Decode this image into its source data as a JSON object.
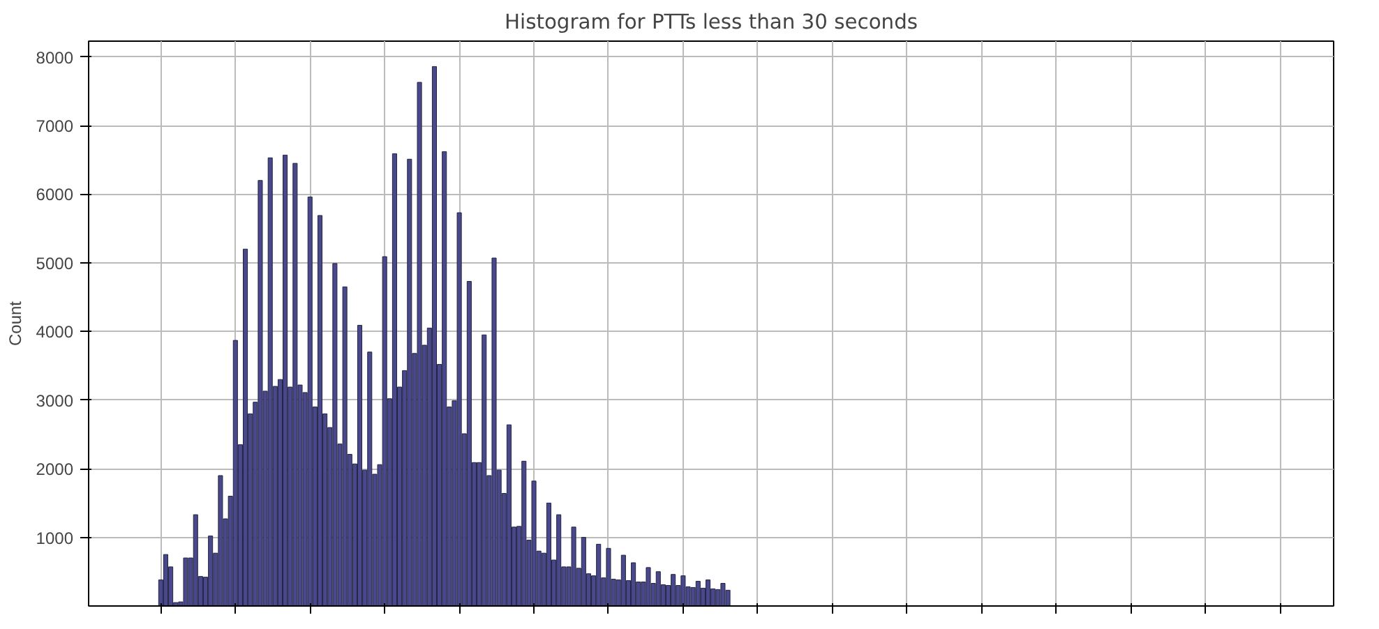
{
  "chart_data": {
    "type": "bar",
    "title": "Histogram for PTTs less than 30 seconds",
    "ylabel": "Count",
    "color": "#48488a",
    "categories": [
      null,
      null,
      null,
      null,
      null,
      null,
      null,
      null,
      null,
      null,
      null,
      null,
      null,
      null,
      null,
      null,
      null,
      null,
      null,
      null,
      null,
      null,
      null,
      null,
      null,
      null,
      null,
      null,
      null,
      null,
      null,
      null,
      null,
      null,
      null,
      null,
      null,
      null,
      null,
      null,
      null,
      null,
      null,
      null,
      null,
      null,
      null,
      null,
      null,
      null,
      null,
      null,
      null,
      null,
      null,
      null,
      null,
      null,
      null,
      null,
      null,
      null,
      null,
      null,
      null,
      null,
      null,
      null,
      null,
      null,
      null,
      null,
      null,
      null,
      null,
      null,
      null,
      null,
      null,
      null,
      null,
      null,
      null,
      null,
      null,
      null,
      null,
      null,
      null,
      null,
      null,
      null,
      null,
      null,
      null,
      null,
      null,
      null,
      null,
      null,
      null,
      null,
      null,
      null,
      null,
      null,
      null,
      null,
      null,
      null,
      null,
      null,
      null,
      null,
      null
    ],
    "values": [
      380,
      750,
      570,
      50,
      60,
      700,
      700,
      1330,
      430,
      420,
      1020,
      770,
      1900,
      1270,
      1600,
      3870,
      2350,
      5200,
      2800,
      2970,
      6200,
      3130,
      6530,
      3200,
      3300,
      6570,
      3190,
      6450,
      3220,
      3110,
      5960,
      2900,
      5690,
      2800,
      2600,
      4990,
      2360,
      4650,
      2210,
      2070,
      4090,
      1980,
      3700,
      1920,
      2060,
      5090,
      3020,
      6590,
      3190,
      3430,
      6510,
      3680,
      7630,
      3800,
      4050,
      7860,
      3520,
      6620,
      2900,
      2990,
      5730,
      2510,
      4730,
      2090,
      2090,
      3950,
      1900,
      5070,
      1980,
      1640,
      2640,
      1150,
      1160,
      2110,
      960,
      1820,
      800,
      770,
      1500,
      670,
      1330,
      570,
      570,
      1150,
      550,
      1000,
      470,
      440,
      900,
      410,
      840,
      390,
      380,
      740,
      370,
      630,
      350,
      350,
      560,
      330,
      500,
      310,
      300,
      460,
      300,
      440,
      280,
      270,
      360,
      260,
      380,
      250,
      240,
      330,
      230
    ],
    "ylim": [
      0,
      8230
    ],
    "yticks": [
      1000,
      2000,
      3000,
      4000,
      5000,
      6000,
      7000,
      8000
    ],
    "grid": true
  }
}
